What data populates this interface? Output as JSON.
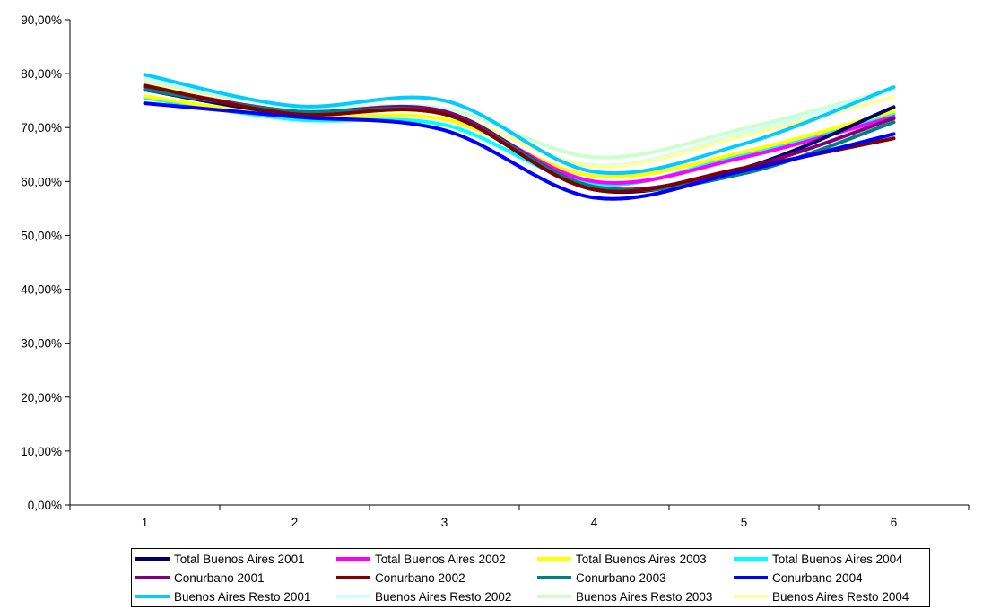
{
  "chart_data": {
    "type": "line",
    "title": "",
    "xlabel": "",
    "ylabel": "",
    "categories": [
      "1",
      "2",
      "3",
      "4",
      "5",
      "6"
    ],
    "ylim": [
      0,
      0.9
    ],
    "yticks": [
      "0,00%",
      "10,00%",
      "20,00%",
      "30,00%",
      "40,00%",
      "50,00%",
      "60,00%",
      "70,00%",
      "80,00%",
      "90,00%"
    ],
    "grid": false,
    "legend_position": "bottom",
    "series": [
      {
        "name": "Total Buenos Aires 2001",
        "color": "#000066",
        "values": [
          0.77,
          0.725,
          0.725,
          0.585,
          0.625,
          0.738
        ]
      },
      {
        "name": "Total Buenos Aires 2002",
        "color": "#ff00ff",
        "values": [
          0.775,
          0.73,
          0.725,
          0.6,
          0.645,
          0.72
        ]
      },
      {
        "name": "Total Buenos Aires 2003",
        "color": "#ffff00",
        "values": [
          0.758,
          0.72,
          0.715,
          0.61,
          0.655,
          0.73
        ]
      },
      {
        "name": "Total Buenos Aires 2004",
        "color": "#00ffff",
        "values": [
          0.755,
          0.715,
          0.705,
          0.595,
          0.65,
          0.725
        ]
      },
      {
        "name": "Conurbano 2001",
        "color": "#800080",
        "values": [
          0.775,
          0.73,
          0.73,
          0.59,
          0.625,
          0.717
        ]
      },
      {
        "name": "Conurbano 2002",
        "color": "#800000",
        "values": [
          0.778,
          0.725,
          0.725,
          0.585,
          0.625,
          0.68
        ]
      },
      {
        "name": "Conurbano 2003",
        "color": "#008080",
        "values": [
          0.77,
          0.73,
          0.725,
          0.59,
          0.615,
          0.71
        ]
      },
      {
        "name": "Conurbano 2004",
        "color": "#0000ff",
        "values": [
          0.745,
          0.72,
          0.695,
          0.57,
          0.62,
          0.688
        ]
      },
      {
        "name": "Buenos Aires Resto 2001",
        "color": "#00ccff",
        "values": [
          0.798,
          0.74,
          0.75,
          0.618,
          0.67,
          0.775
        ]
      },
      {
        "name": "Buenos Aires Resto 2002",
        "color": "#ccffff",
        "values": [
          0.792,
          0.738,
          0.725,
          0.63,
          0.69,
          0.77
        ]
      },
      {
        "name": "Buenos Aires Resto 2003",
        "color": "#ccffcc",
        "values": [
          0.785,
          0.738,
          0.735,
          0.645,
          0.698,
          0.772
        ]
      },
      {
        "name": "Buenos Aires Resto 2004",
        "color": "#ffff99",
        "values": [
          0.78,
          0.73,
          0.725,
          0.628,
          0.685,
          0.757
        ]
      }
    ]
  }
}
